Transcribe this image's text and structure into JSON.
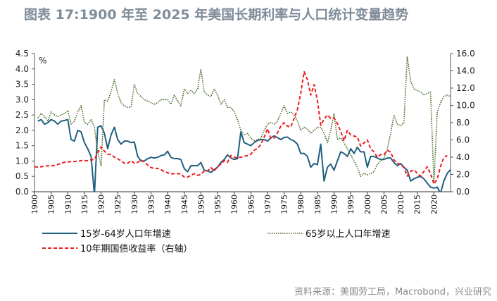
{
  "title": "图表 17:1900 年至 2025 年美国长期利率与人口统计变量趋势",
  "source": "资料来源：美国劳工局，Macrobond，兴业研究",
  "chart_data": {
    "type": "line",
    "title": "图表 17:1900 年至 2025 年美国长期利率与人口统计变量趋势",
    "left_axis_unit": "%",
    "left_ylim": [
      0,
      4.5
    ],
    "left_ticks": [
      "0.0",
      "0.5",
      "1.0",
      "1.5",
      "2.0",
      "2.5",
      "3.0",
      "3.5",
      "4.0",
      "4.5"
    ],
    "right_ylim": [
      0,
      16
    ],
    "right_ticks": [
      "0.0",
      "2.0",
      "4.0",
      "6.0",
      "8.0",
      "10.0",
      "12.0",
      "14.0",
      "16.0"
    ],
    "xlim": [
      1900,
      2025
    ],
    "x_ticks": [
      "1900",
      "1905",
      "1910",
      "1915",
      "1920",
      "1925",
      "1930",
      "1935",
      "1940",
      "1945",
      "1950",
      "1955",
      "1960",
      "1965",
      "1970",
      "1975",
      "1980",
      "1985",
      "1990",
      "1995",
      "2000",
      "2005",
      "2010",
      "2015",
      "2020"
    ],
    "grid": false,
    "legend_position": "bottom",
    "series": [
      {
        "name": "15岁-64岁人口年增速",
        "axis": "left",
        "color": "#1f5f7f",
        "style": "solid",
        "values": [
          null,
          2.3,
          2.35,
          2.2,
          2.25,
          2.35,
          2.3,
          2.2,
          2.3,
          2.32,
          2.35,
          1.7,
          1.65,
          2.0,
          1.95,
          1.6,
          1.4,
          1.15,
          -0.1,
          2.1,
          2.15,
          1.9,
          1.4,
          1.85,
          2.1,
          1.7,
          1.55,
          1.65,
          1.65,
          1.6,
          1.62,
          1.15,
          1.0,
          1.0,
          1.08,
          1.12,
          1.1,
          1.12,
          1.18,
          1.2,
          1.32,
          1.12,
          1.08,
          1.08,
          1.05,
          0.75,
          0.65,
          0.85,
          0.85,
          0.85,
          0.95,
          0.7,
          0.68,
          0.63,
          0.72,
          0.8,
          0.95,
          1.05,
          1.2,
          1.1,
          1.05,
          1.08,
          1.95,
          1.6,
          1.55,
          1.5,
          1.6,
          1.67,
          1.7,
          1.7,
          1.65,
          1.75,
          1.82,
          1.76,
          1.7,
          1.77,
          1.78,
          1.7,
          1.65,
          1.55,
          1.25,
          1.25,
          1.15,
          0.8,
          0.92,
          0.88,
          1.55,
          0.35,
          0.8,
          0.9,
          0.7,
          1.0,
          1.3,
          1.25,
          1.15,
          1.4,
          1.25,
          1.45,
          1.3,
          1.3,
          0.8,
          1.15,
          1.15,
          1.1,
          1.05,
          1.05,
          1.1,
          1.1,
          0.95,
          0.85,
          0.92,
          0.8,
          0.7,
          0.35,
          0.42,
          0.47,
          0.5,
          0.42,
          0.28,
          0.15,
          0.12,
          0.15,
          -0.05,
          0.35,
          0.6,
          0.72
        ]
      },
      {
        "name": "65岁以上人口年增速",
        "axis": "left",
        "color": "#4a6b2a",
        "style": "dotted",
        "values": [
          null,
          2.4,
          2.55,
          2.45,
          2.3,
          2.6,
          2.5,
          2.45,
          2.5,
          2.55,
          2.65,
          2.2,
          2.3,
          2.6,
          2.8,
          2.25,
          2.2,
          2.35,
          2.1,
          1.3,
          0.85,
          3.0,
          2.95,
          3.25,
          3.65,
          3.2,
          2.9,
          2.8,
          2.75,
          2.75,
          3.5,
          3.2,
          3.1,
          3.0,
          2.95,
          2.9,
          2.85,
          2.9,
          3.0,
          3.0,
          3.0,
          2.85,
          3.15,
          2.95,
          2.8,
          3.35,
          3.2,
          3.3,
          3.2,
          3.35,
          4.0,
          3.25,
          3.15,
          3.1,
          3.35,
          3.15,
          2.85,
          3.0,
          2.75,
          2.75,
          2.6,
          2.35,
          2.0,
          1.85,
          1.9,
          1.75,
          1.65,
          1.7,
          1.75,
          2.0,
          2.2,
          2.25,
          2.2,
          2.3,
          2.55,
          2.8,
          2.55,
          2.6,
          2.5,
          2.3,
          2.0,
          2.1,
          2.05,
          1.9,
          2.0,
          2.1,
          2.1,
          1.9,
          1.6,
          2.0,
          2.55,
          1.7,
          1.75,
          1.6,
          1.4,
          1.2,
          1.0,
          0.8,
          0.5,
          0.6,
          0.55,
          0.6,
          0.65,
          0.9,
          1.0,
          1.1,
          1.4,
          1.9,
          2.5,
          2.2,
          2.15,
          2.25,
          4.4,
          3.6,
          3.35,
          3.3,
          3.25,
          3.15,
          3.2,
          3.25,
          0.3,
          2.6,
          2.9,
          3.1,
          3.15,
          3.1
        ]
      },
      {
        "name": "10年期国债收益率（右轴）",
        "axis": "right",
        "color": "#ee1c1c",
        "style": "dashed",
        "values": [
          2.9,
          2.85,
          2.9,
          2.95,
          3.0,
          3.0,
          3.05,
          3.15,
          3.3,
          3.4,
          3.45,
          3.5,
          3.5,
          3.55,
          3.6,
          3.6,
          3.6,
          3.7,
          3.75,
          4.5,
          5.2,
          4.7,
          4.35,
          4.3,
          4.0,
          3.8,
          3.6,
          3.3,
          3.3,
          3.6,
          3.3,
          3.4,
          3.7,
          3.4,
          3.1,
          2.8,
          2.7,
          2.7,
          2.55,
          2.35,
          2.2,
          2.05,
          2.1,
          2.1,
          2.05,
          1.7,
          1.7,
          1.9,
          2.1,
          1.9,
          2.0,
          2.4,
          2.4,
          2.8,
          2.4,
          2.9,
          3.2,
          3.6,
          3.4,
          4.2,
          4.0,
          3.9,
          4.0,
          4.1,
          4.2,
          4.35,
          4.8,
          5.0,
          5.5,
          6.3,
          7.3,
          6.2,
          6.2,
          6.8,
          7.6,
          8.0,
          7.6,
          7.5,
          8.5,
          9.5,
          11.4,
          13.9,
          13.0,
          11.2,
          12.4,
          10.6,
          7.7,
          8.4,
          8.9,
          8.5,
          8.55,
          7.9,
          7.0,
          5.9,
          7.1,
          6.6,
          6.45,
          6.35,
          5.3,
          5.65,
          6.0,
          5.0,
          4.6,
          4.0,
          4.3,
          4.3,
          4.8,
          4.6,
          3.7,
          3.3,
          3.2,
          2.8,
          1.8,
          2.35,
          2.55,
          2.15,
          1.8,
          2.35,
          2.9,
          2.1,
          0.9,
          1.45,
          2.95,
          3.95,
          4.2,
          null
        ]
      }
    ]
  }
}
